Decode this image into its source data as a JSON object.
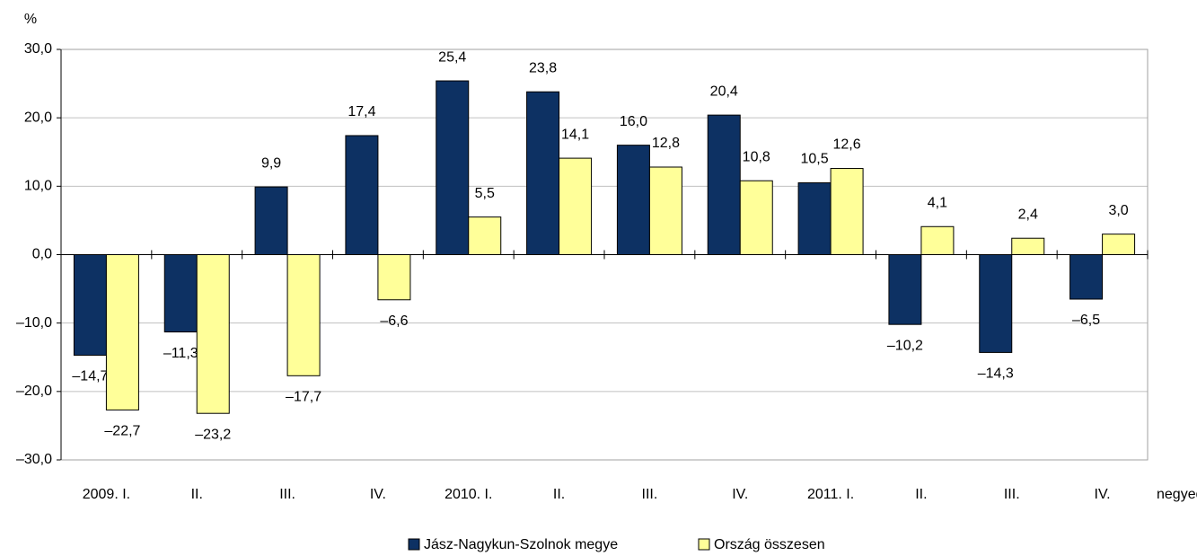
{
  "chart_data": {
    "type": "bar",
    "y_label": "%",
    "x_label": "negyedév",
    "categories": [
      "2009. I.",
      "II.",
      "III.",
      "IV.",
      "2010. I.",
      "II.",
      "III.",
      "IV.",
      "2011. I.",
      "II.",
      "III.",
      "IV."
    ],
    "series": [
      {
        "name": "Jász-Nagykun-Szolnok megye",
        "color": "#0d3163",
        "values": [
          -14.7,
          -11.3,
          9.9,
          17.4,
          25.4,
          23.8,
          16.0,
          20.4,
          10.5,
          -10.2,
          -14.3,
          -6.5
        ],
        "value_labels": [
          "–14,7",
          "–11,3",
          "9,9",
          "17,4",
          "25,4",
          "23,8",
          "16,0",
          "20,4",
          "10,5",
          "–10,2",
          "–14,3",
          "–6,5"
        ]
      },
      {
        "name": "Ország összesen",
        "color": "#ffff99",
        "values": [
          -22.7,
          -23.2,
          -17.7,
          -6.6,
          5.5,
          14.1,
          12.8,
          10.8,
          12.6,
          4.1,
          2.4,
          3.0
        ],
        "value_labels": [
          "–22,7",
          "–23,2",
          "–17,7",
          "–6,6",
          "5,5",
          "14,1",
          "12,8",
          "10,8",
          "12,6",
          "4,1",
          "2,4",
          "3,0"
        ]
      }
    ],
    "ylim": [
      -30,
      30
    ],
    "yticks": [
      {
        "value": -30,
        "label": "–30,0"
      },
      {
        "value": -20,
        "label": "–20,0"
      },
      {
        "value": -10,
        "label": "–10,0"
      },
      {
        "value": 0,
        "label": "0,0"
      },
      {
        "value": 10,
        "label": "10,0"
      },
      {
        "value": 20,
        "label": "20,0"
      },
      {
        "value": 30,
        "label": "30,0"
      }
    ],
    "grid": true,
    "legend": "bottom"
  }
}
